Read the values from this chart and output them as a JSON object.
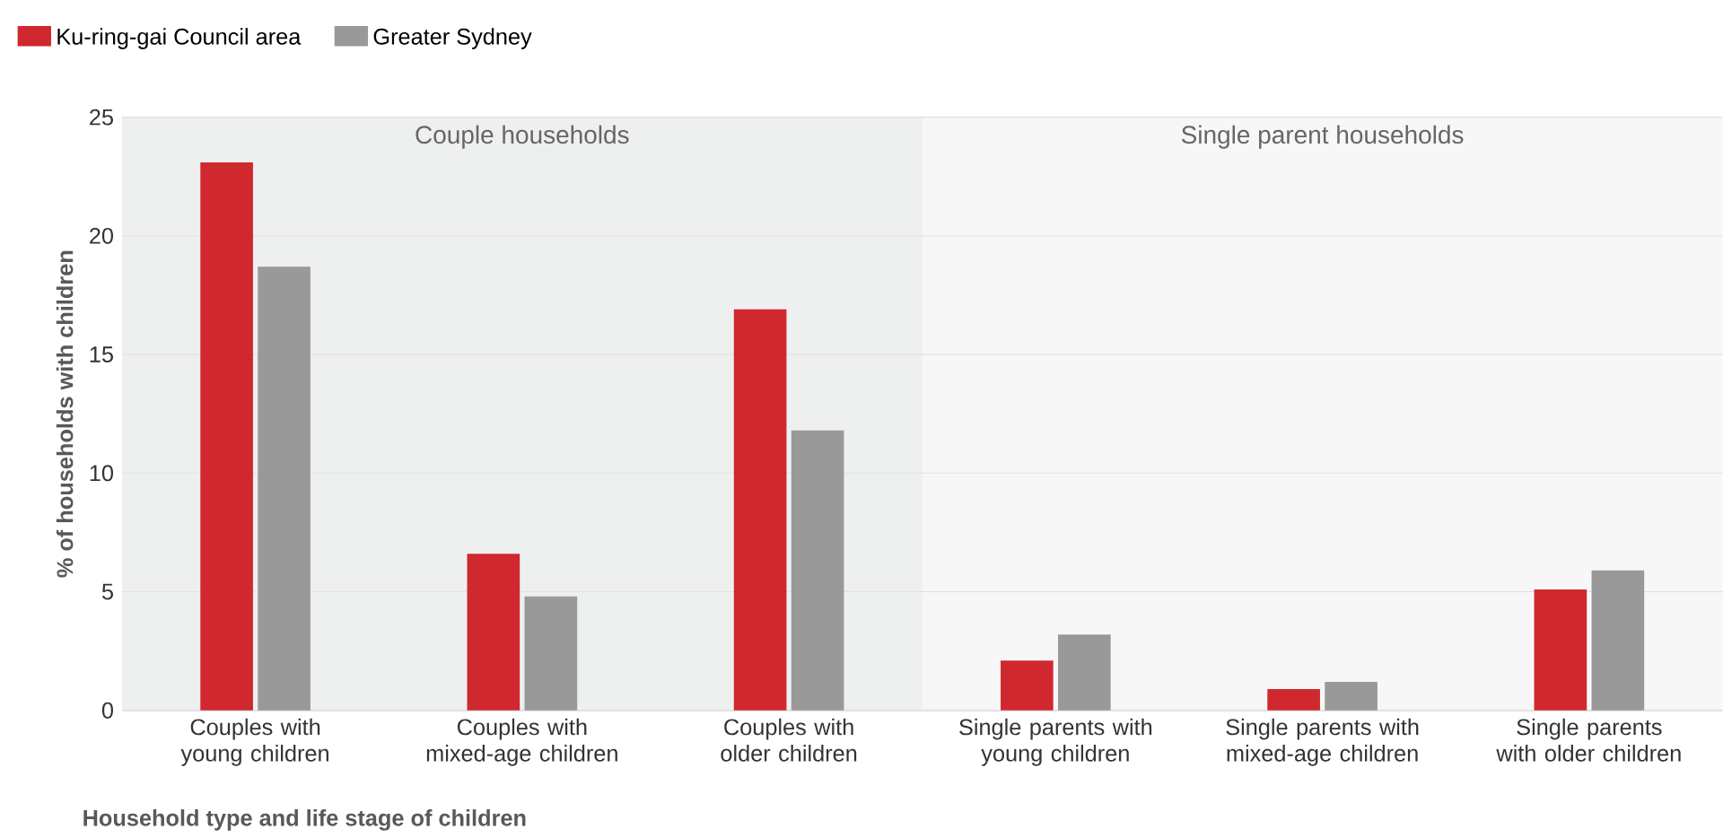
{
  "chart_data": {
    "type": "bar",
    "xlabel": "Household type and life stage of children",
    "ylabel": "% of households with children",
    "categories": [
      "Couples with young children",
      "Couples with mixed-age children",
      "Couples with older children",
      "Single parents with young children",
      "Single parents with mixed-age children",
      "Single parents with older children"
    ],
    "series": [
      {
        "name": "Ku-ring-gai Council area",
        "color": "#d0282f",
        "values": [
          23.1,
          6.6,
          16.9,
          2.1,
          0.9,
          5.1
        ]
      },
      {
        "name": "Greater Sydney",
        "color": "#999999",
        "values": [
          18.7,
          4.8,
          11.8,
          3.2,
          1.2,
          5.9
        ]
      }
    ],
    "ylim": [
      0,
      25
    ],
    "yticks": [
      0,
      5,
      10,
      15,
      20,
      25
    ],
    "grid": "y",
    "legend": "top left",
    "bands": [
      {
        "axis": "x",
        "from": "Couples with young children",
        "to": "Couples with older children",
        "label": "Couple households",
        "color": "#eef0f0"
      },
      {
        "axis": "x",
        "from": "Single parents with young children",
        "to": "Single parents with older children",
        "label": "Single parent households",
        "color": "#f7f7f7"
      }
    ]
  }
}
